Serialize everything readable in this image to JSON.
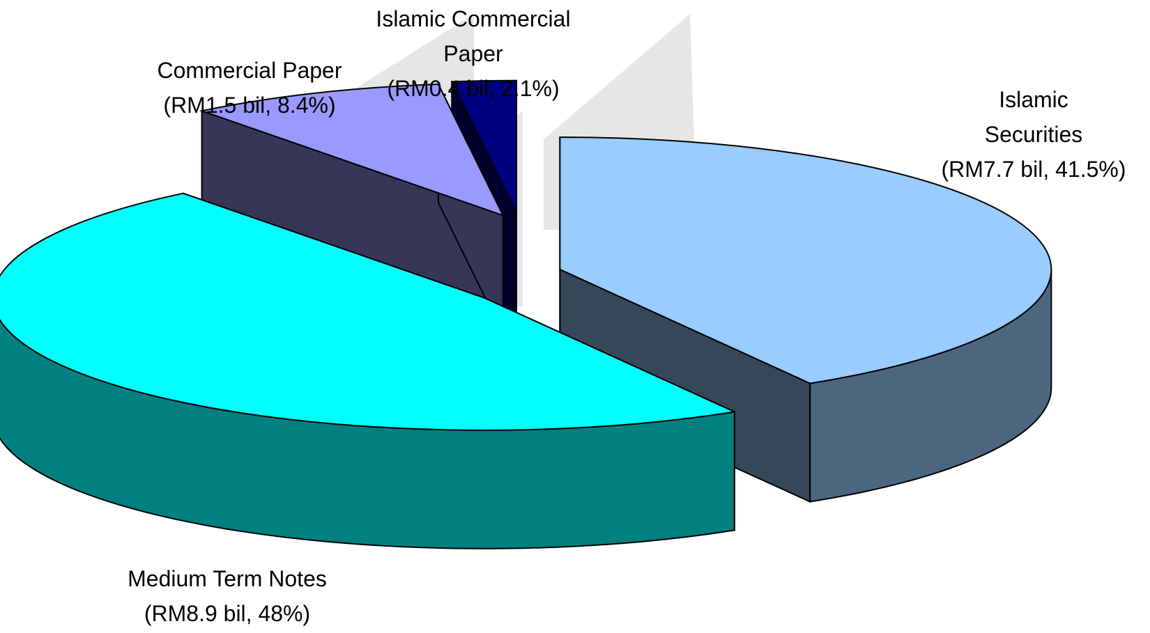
{
  "chart_data": {
    "type": "pie",
    "categories": [
      "Islamic Securities",
      "Medium Term Notes",
      "Commercial Paper",
      "Islamic Commercial Paper"
    ],
    "values": [
      41.5,
      48,
      8.4,
      2.1
    ],
    "value_labels": [
      "(RM7.7 bil, 41.5%)",
      "(RM8.9 bil, 48%)",
      "(RM1.5 bil, 8.4%)",
      "(RM0.4 bil, 2.1%)"
    ],
    "colors": [
      "#99ccff",
      "#00ffff",
      "#9999ff",
      "#000080"
    ]
  }
}
